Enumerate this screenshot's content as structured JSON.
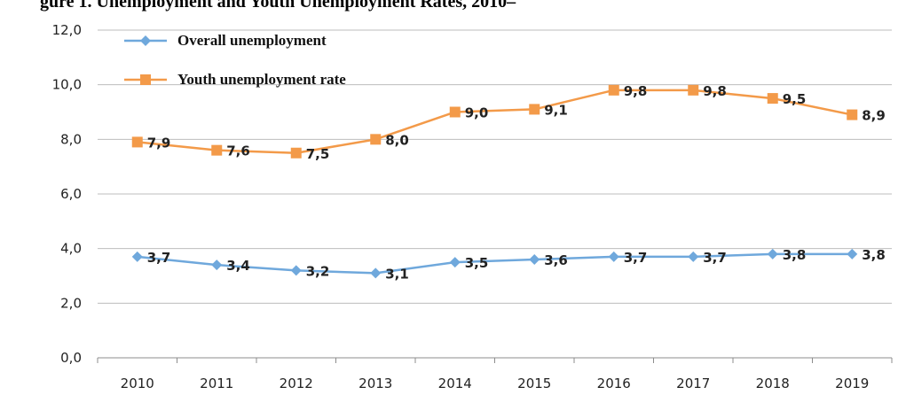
{
  "chart_data": {
    "type": "line",
    "title": "gure 1. Unemployment and Youth Unemployment Rates, 2010–",
    "xlabel": "",
    "ylabel": "",
    "x": [
      "2010",
      "2011",
      "2012",
      "2013",
      "2014",
      "2015",
      "2016",
      "2017",
      "2018",
      "2019"
    ],
    "ylim": [
      0,
      12
    ],
    "yticks": [
      "0,0",
      "2,0",
      "4,0",
      "6,0",
      "8,0",
      "10,0",
      "12,0"
    ],
    "grid": true,
    "legend_position": "top-left",
    "series": [
      {
        "name": "Overall unemployment",
        "color": "#6fa8dc",
        "marker": "diamond",
        "values": [
          3.7,
          3.4,
          3.2,
          3.1,
          3.5,
          3.6,
          3.7,
          3.7,
          3.8,
          3.8
        ],
        "labels": [
          "3,7",
          "3,4",
          "3,2",
          "3,1",
          "3,5",
          "3,6",
          "3,7",
          "3,7",
          "3,8",
          "3,8"
        ]
      },
      {
        "name": "Youth unemployment rate",
        "color": "#f39a49",
        "marker": "square",
        "values": [
          7.9,
          7.6,
          7.5,
          8.0,
          9.0,
          9.1,
          9.8,
          9.8,
          9.5,
          8.9
        ],
        "labels": [
          "7,9",
          "7,6",
          "7,5",
          "8,0",
          "9,0",
          "9,1",
          "9,8",
          "9,8",
          "9,5",
          "8,9"
        ]
      }
    ]
  }
}
